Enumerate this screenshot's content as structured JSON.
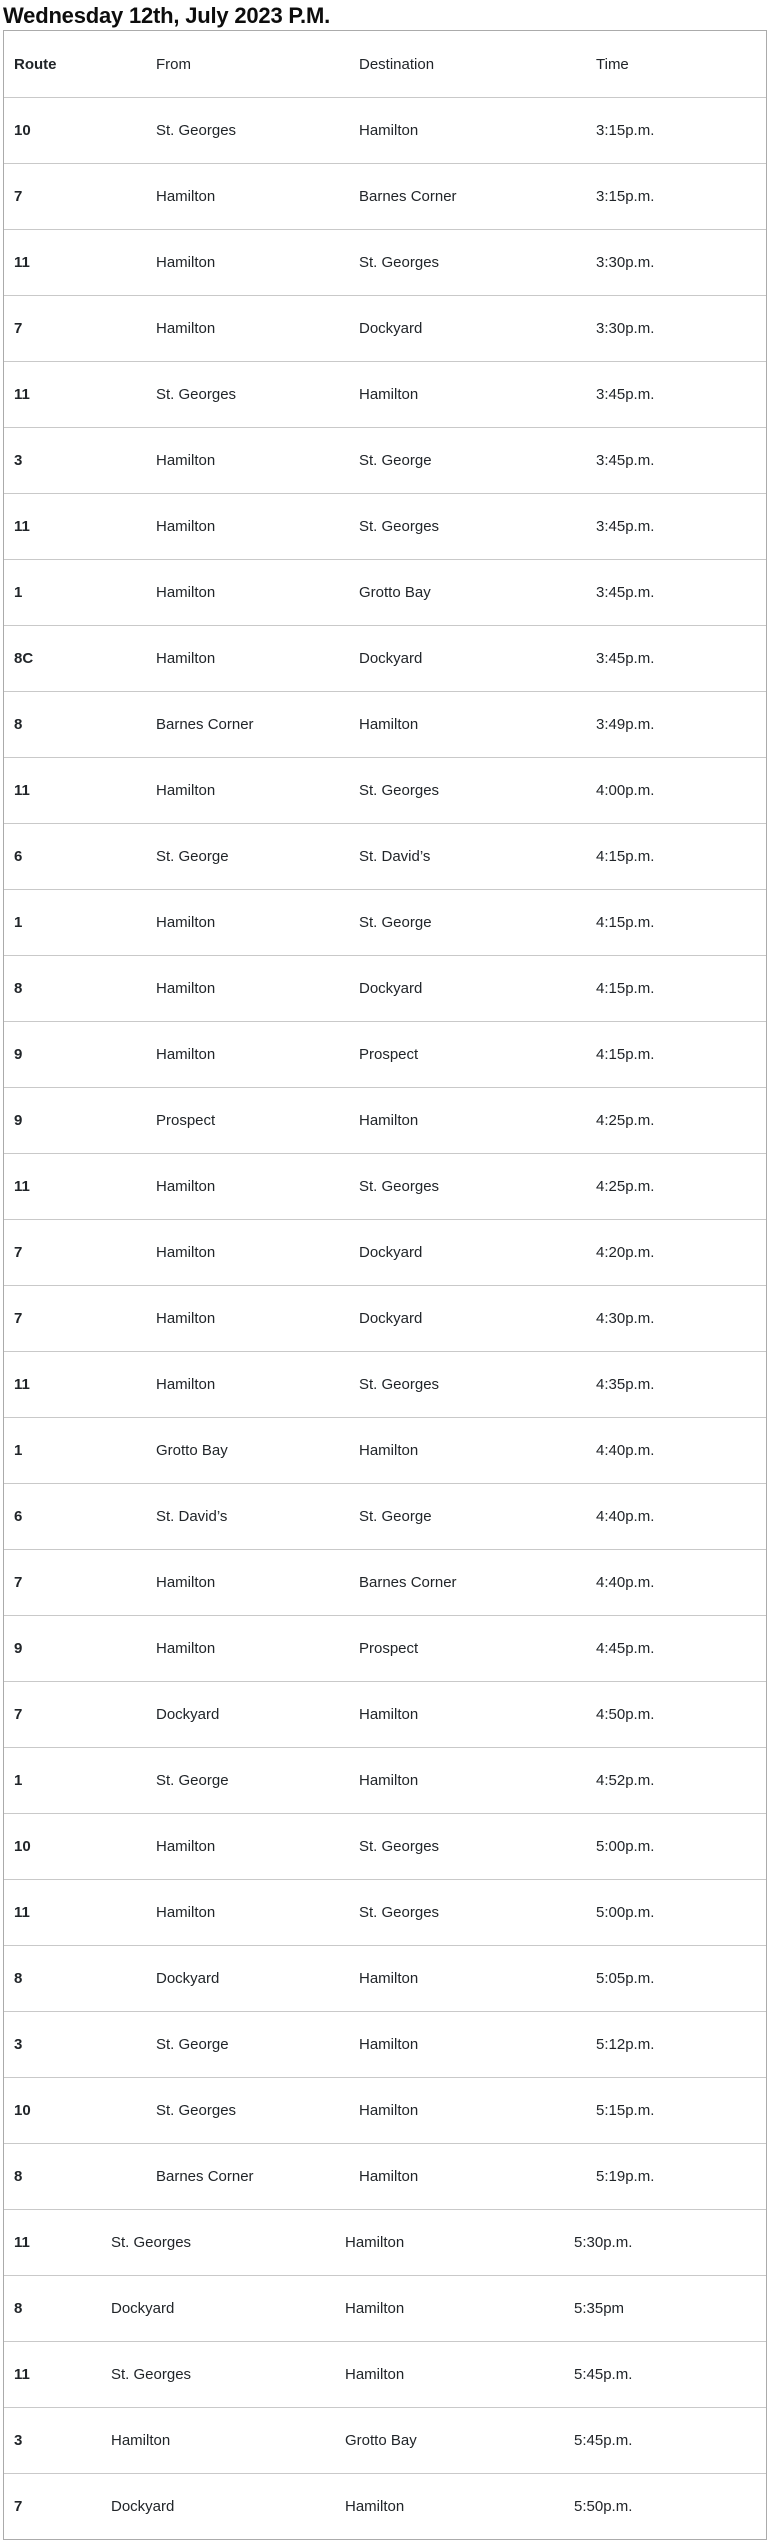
{
  "page": {
    "title": "Wednesday 12th, July 2023 P.M."
  },
  "table": {
    "headers": {
      "route": "Route",
      "from": "From",
      "destination": "Destination",
      "time": "Time"
    },
    "rows": [
      {
        "route": "10",
        "from": "St. Georges",
        "destination": "Hamilton",
        "time": "3:15p.m."
      },
      {
        "route": "7",
        "from": "Hamilton",
        "destination": "Barnes Corner",
        "time": "3:15p.m."
      },
      {
        "route": "11",
        "from": "Hamilton",
        "destination": "St. Georges",
        "time": "3:30p.m."
      },
      {
        "route": "7",
        "from": "Hamilton",
        "destination": "Dockyard",
        "time": "3:30p.m."
      },
      {
        "route": "11",
        "from": "St. Georges",
        "destination": "Hamilton",
        "time": "3:45p.m."
      },
      {
        "route": "3",
        "from": "Hamilton",
        "destination": "St. George",
        "time": "3:45p.m."
      },
      {
        "route": "11",
        "from": "Hamilton",
        "destination": "St. Georges",
        "time": "3:45p.m."
      },
      {
        "route": "1",
        "from": "Hamilton",
        "destination": "Grotto Bay",
        "time": "3:45p.m."
      },
      {
        "route": "8C",
        "from": "Hamilton",
        "destination": "Dockyard",
        "time": "3:45p.m."
      },
      {
        "route": "8",
        "from": "Barnes Corner",
        "destination": "Hamilton",
        "time": "3:49p.m."
      },
      {
        "route": "11",
        "from": "Hamilton",
        "destination": "St. Georges",
        "time": "4:00p.m."
      },
      {
        "route": "6",
        "from": "St. George",
        "destination": "St. David’s",
        "time": "4:15p.m."
      },
      {
        "route": "1",
        "from": "Hamilton",
        "destination": "St. George",
        "time": "4:15p.m."
      },
      {
        "route": "8",
        "from": "Hamilton",
        "destination": "Dockyard",
        "time": "4:15p.m."
      },
      {
        "route": "9",
        "from": "Hamilton",
        "destination": "Prospect",
        "time": "4:15p.m."
      },
      {
        "route": "9",
        "from": "Prospect",
        "destination": "Hamilton",
        "time": "4:25p.m."
      },
      {
        "route": "11",
        "from": "Hamilton",
        "destination": "St. Georges",
        "time": "4:25p.m."
      },
      {
        "route": "7",
        "from": "Hamilton",
        "destination": "Dockyard",
        "time": "4:20p.m."
      },
      {
        "route": "7",
        "from": "Hamilton",
        "destination": "Dockyard",
        "time": "4:30p.m."
      },
      {
        "route": "11",
        "from": "Hamilton",
        "destination": "St. Georges",
        "time": "4:35p.m."
      },
      {
        "route": "1",
        "from": "Grotto Bay",
        "destination": "Hamilton",
        "time": "4:40p.m."
      },
      {
        "route": "6",
        "from": "St. David’s",
        "destination": "St. George",
        "time": "4:40p.m."
      },
      {
        "route": "7",
        "from": "Hamilton",
        "destination": "Barnes Corner",
        "time": "4:40p.m."
      },
      {
        "route": "9",
        "from": "Hamilton",
        "destination": "Prospect",
        "time": "4:45p.m."
      },
      {
        "route": "7",
        "from": "Dockyard",
        "destination": "Hamilton",
        "time": "4:50p.m."
      },
      {
        "route": "1",
        "from": "St. George",
        "destination": "Hamilton",
        "time": "4:52p.m."
      },
      {
        "route": "10",
        "from": "Hamilton",
        "destination": "St. Georges",
        "time": "5:00p.m."
      },
      {
        "route": "11",
        "from": "Hamilton",
        "destination": "St. Georges",
        "time": "5:00p.m."
      },
      {
        "route": "8",
        "from": "Dockyard",
        "destination": "Hamilton",
        "time": "5:05p.m."
      },
      {
        "route": "3",
        "from": "St. George",
        "destination": "Hamilton",
        "time": "5:12p.m."
      },
      {
        "route": "10",
        "from": "St. Georges",
        "destination": "Hamilton",
        "time": "5:15p.m."
      },
      {
        "route": "8",
        "from": "Barnes Corner",
        "destination": "Hamilton",
        "time": "5:19p.m."
      },
      {
        "route": "11",
        "from": "St. Georges",
        "destination": "Hamilton",
        "time": "5:30p.m."
      },
      {
        "route": "8",
        "from": "Dockyard",
        "destination": "Hamilton",
        "time": "5:35pm"
      },
      {
        "route": "11",
        "from": "St. Georges",
        "destination": "Hamilton",
        "time": "5:45p.m."
      },
      {
        "route": "3",
        "from": "Hamilton",
        "destination": "Grotto Bay",
        "time": "5:45p.m."
      },
      {
        "route": "7",
        "from": "Dockyard",
        "destination": "Hamilton",
        "time": "5:50p.m."
      }
    ]
  },
  "colors": {
    "background": "#ffffff",
    "title_text": "#0d0d0d",
    "body_text": "#212529",
    "border_outer": "#ababab",
    "border_row": "#c9c9c9"
  }
}
